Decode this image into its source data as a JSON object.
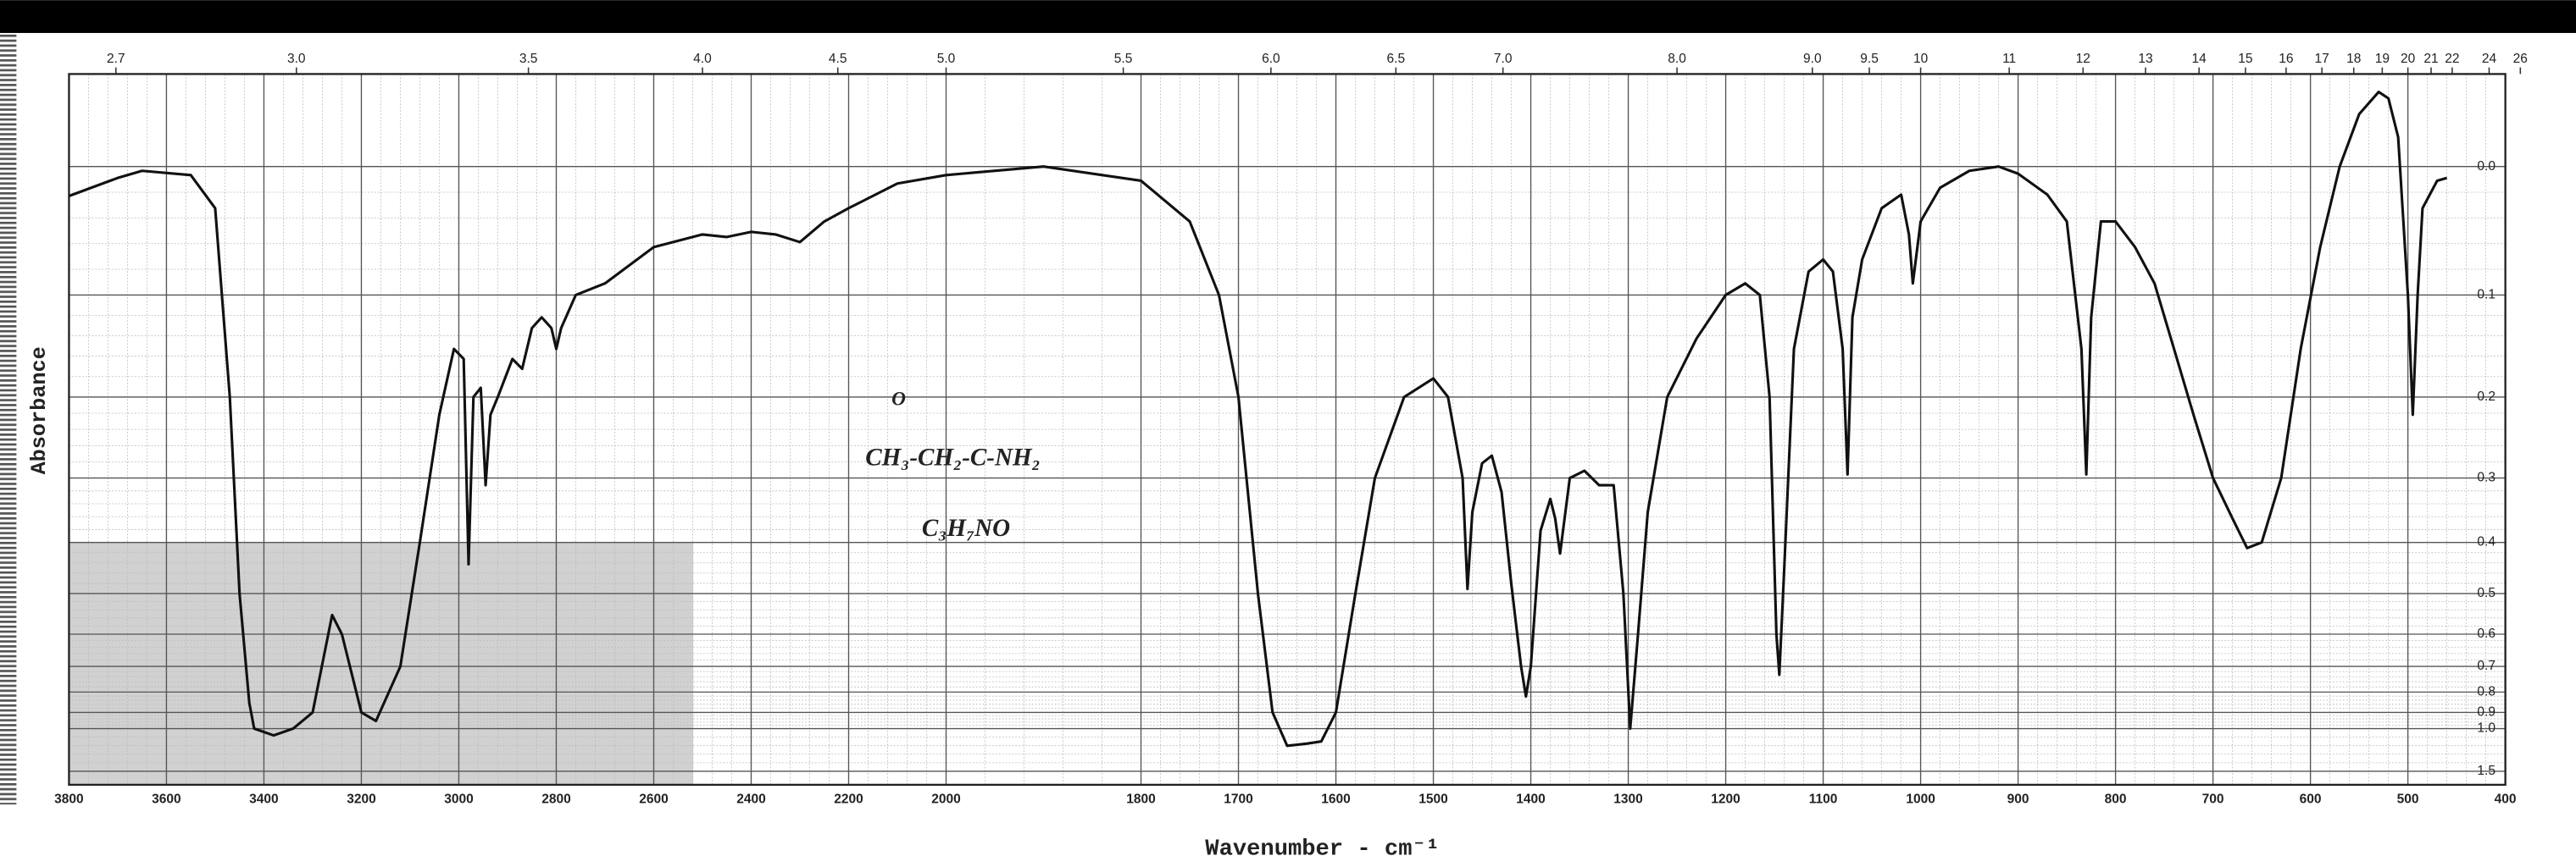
{
  "chart_data": {
    "type": "line",
    "xlabel": "Wavenumber - cm⁻¹",
    "ylabel": "Absorbance",
    "annotations": [
      "O",
      "CH₃-CH₂-C-NH₂",
      "C₃H₇NO"
    ],
    "color": "#111111",
    "grid": true,
    "y_scale": "absorbance",
    "x_scale_halves_above": 2000,
    "xlim": [
      3800,
      400
    ],
    "xticks": [
      3800,
      3600,
      3400,
      3200,
      3000,
      2800,
      2600,
      2400,
      2200,
      2000,
      1800,
      1700,
      1600,
      1500,
      1400,
      1300,
      1200,
      1100,
      1000,
      900,
      800,
      700,
      600,
      500,
      400
    ],
    "x2ticks": [
      2.7,
      {
        "value": 3,
        "label": "3.0"
      },
      3.5,
      {
        "value": 4,
        "label": "4.0"
      },
      4.5,
      {
        "value": 5,
        "label": "5.0"
      },
      5.5,
      {
        "value": 6,
        "label": "6.0"
      },
      6.5,
      {
        "value": 7,
        "label": "7.0"
      },
      {
        "value": 8,
        "label": "8.0"
      },
      {
        "value": 9,
        "label": "9.0"
      },
      9.5,
      10,
      11,
      12,
      13,
      14,
      15,
      16,
      17,
      18,
      19,
      20,
      21,
      22,
      24,
      26
    ],
    "ylim": [
      -0.06,
      2.0
    ],
    "yticks": [
      {
        "value": 0,
        "label": "0.0"
      },
      0.1,
      0.2,
      0.3,
      0.4,
      0.5,
      0.6,
      0.7,
      0.8,
      0.9,
      {
        "value": 1,
        "label": "1.0"
      },
      1.5
    ],
    "x": [
      3800,
      3700,
      3650,
      3550,
      3500,
      3470,
      3450,
      3430,
      3420,
      3380,
      3340,
      3300,
      3260,
      3240,
      3200,
      3170,
      3120,
      3080,
      3040,
      3010,
      2990,
      2980,
      2970,
      2955,
      2945,
      2935,
      2920,
      2890,
      2870,
      2850,
      2830,
      2810,
      2800,
      2790,
      2760,
      2700,
      2600,
      2500,
      2450,
      2400,
      2350,
      2300,
      2250,
      2200,
      2100,
      2000,
      1900,
      1800,
      1750,
      1720,
      1700,
      1680,
      1665,
      1650,
      1630,
      1615,
      1600,
      1580,
      1560,
      1530,
      1500,
      1485,
      1470,
      1465,
      1460,
      1450,
      1440,
      1430,
      1420,
      1410,
      1405,
      1400,
      1390,
      1380,
      1375,
      1370,
      1360,
      1345,
      1330,
      1315,
      1305,
      1298,
      1290,
      1280,
      1260,
      1230,
      1200,
      1180,
      1165,
      1155,
      1148,
      1145,
      1140,
      1130,
      1115,
      1100,
      1090,
      1080,
      1075,
      1070,
      1060,
      1040,
      1020,
      1012,
      1008,
      1000,
      980,
      950,
      920,
      900,
      870,
      850,
      835,
      830,
      825,
      815,
      800,
      780,
      760,
      740,
      720,
      700,
      680,
      665,
      650,
      630,
      610,
      590,
      570,
      550,
      530,
      520,
      510,
      500,
      495,
      490,
      485,
      470,
      460
    ],
    "values": [
      0.021,
      0.008,
      0.003,
      0.006,
      0.03,
      0.2,
      0.5,
      0.85,
      1.0,
      1.05,
      1.0,
      0.9,
      0.55,
      0.6,
      0.9,
      0.95,
      0.7,
      0.4,
      0.22,
      0.15,
      0.16,
      0.44,
      0.2,
      0.19,
      0.31,
      0.22,
      0.2,
      0.16,
      0.17,
      0.13,
      0.12,
      0.13,
      0.15,
      0.13,
      0.1,
      0.09,
      0.06,
      0.05,
      0.052,
      0.048,
      0.05,
      0.056,
      0.04,
      0.03,
      0.012,
      0.006,
      0,
      0.01,
      0.04,
      0.1,
      0.2,
      0.5,
      0.9,
      1.14,
      1.12,
      1.1,
      0.9,
      0.5,
      0.3,
      0.2,
      0.18,
      0.2,
      0.3,
      0.49,
      0.35,
      0.28,
      0.27,
      0.32,
      0.48,
      0.7,
      0.82,
      0.7,
      0.38,
      0.33,
      0.36,
      0.42,
      0.3,
      0.29,
      0.31,
      0.31,
      0.5,
      1.0,
      0.6,
      0.35,
      0.2,
      0.14,
      0.1,
      0.09,
      0.1,
      0.2,
      0.6,
      0.73,
      0.45,
      0.15,
      0.08,
      0.07,
      0.08,
      0.15,
      0.295,
      0.12,
      0.07,
      0.03,
      0.02,
      0.05,
      0.09,
      0.04,
      0.015,
      0.003,
      0,
      0.005,
      0.02,
      0.04,
      0.15,
      0.295,
      0.12,
      0.04,
      0.04,
      0.06,
      0.09,
      0.15,
      0.22,
      0.3,
      0.36,
      0.41,
      0.4,
      0.3,
      0.15,
      0.06,
      0,
      -0.035,
      -0.049,
      -0.045,
      -0.02,
      0.1,
      0.22,
      0.1,
      0.03,
      0.01,
      0.008
    ]
  }
}
